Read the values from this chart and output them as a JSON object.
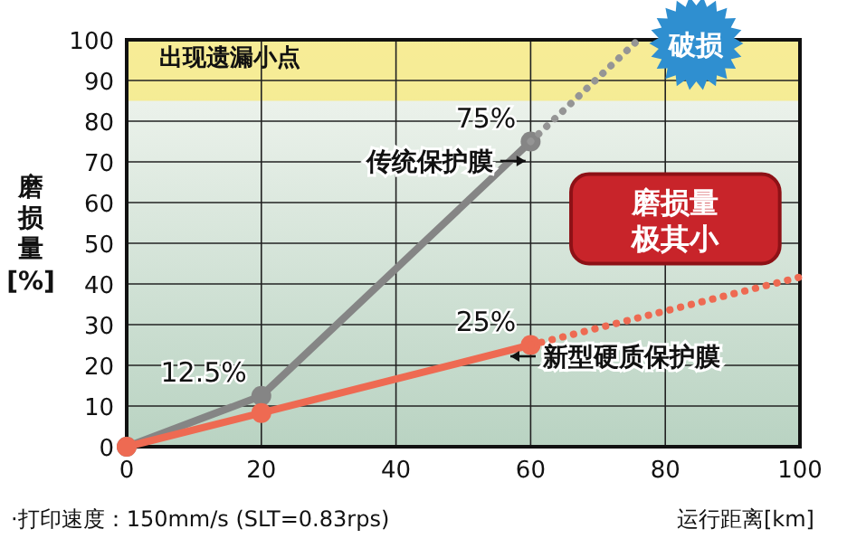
{
  "chart_data": {
    "type": "line",
    "xlabel": "运行距离[km]",
    "ylabel": "磨损量[%]",
    "xlim": [
      0,
      100
    ],
    "xticks": [
      0,
      20,
      40,
      60,
      80,
      100
    ],
    "ylim": [
      0,
      100
    ],
    "yticks": [
      0,
      10,
      20,
      30,
      40,
      50,
      60,
      70,
      80,
      90,
      100
    ],
    "grid": true,
    "series": [
      {
        "name": "传统保护膜",
        "color": "#858585",
        "x": [
          0,
          20,
          60
        ],
        "values": [
          0,
          12.5,
          75
        ],
        "line_style": "solid",
        "marker": "circle"
      },
      {
        "color": "#959595",
        "x": [
          60,
          76
        ],
        "values": [
          75,
          100
        ],
        "line_style": "dotted",
        "marker": "none"
      },
      {
        "name": "新型硬质保护膜",
        "color": "#ee6a52",
        "x": [
          0,
          20,
          60
        ],
        "values": [
          0,
          8.3,
          25
        ],
        "line_style": "solid",
        "marker": "circle"
      },
      {
        "color": "#ee6a52",
        "x": [
          60,
          100
        ],
        "values": [
          25,
          41.7
        ],
        "line_style": "dotted",
        "marker": "none"
      }
    ],
    "bands": [
      {
        "axis": "y",
        "from": 85,
        "to": 100,
        "label": "出现遗漏小点",
        "color": "#f7ea80"
      }
    ],
    "annotations": [
      {
        "text": "12.5%",
        "x": 20,
        "y": 12.5
      },
      {
        "text": "75%",
        "x": 60,
        "y": 75
      },
      {
        "text": "25%",
        "x": 60,
        "y": 25
      },
      {
        "text": "破损",
        "x": 76,
        "y": 100
      },
      "磨损量极其小",
      "·打印速度：150mm/s (SLT=0.83rps)"
    ]
  }
}
